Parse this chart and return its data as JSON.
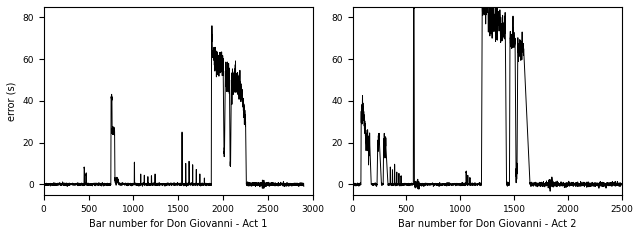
{
  "act1": {
    "xlabel": "Bar number for Don Giovanni - Act 1",
    "xlim": [
      0,
      3000
    ],
    "xticks": [
      0,
      500,
      1000,
      1500,
      2000,
      2500,
      3000
    ],
    "ylim": [
      -5,
      85
    ],
    "yticks": [
      0,
      20,
      40,
      60,
      80
    ],
    "ylabel": "error (s)"
  },
  "act2": {
    "xlabel": "Bar number for Don Giovanni - Act 2",
    "xlim": [
      0,
      2500
    ],
    "xticks": [
      0,
      500,
      1000,
      1500,
      2000,
      2500
    ],
    "ylim": [
      -5,
      85
    ],
    "yticks": [
      0,
      20,
      40,
      60,
      80
    ]
  },
  "line_color": "#000000",
  "line_width": 0.7,
  "background_color": "#ffffff"
}
